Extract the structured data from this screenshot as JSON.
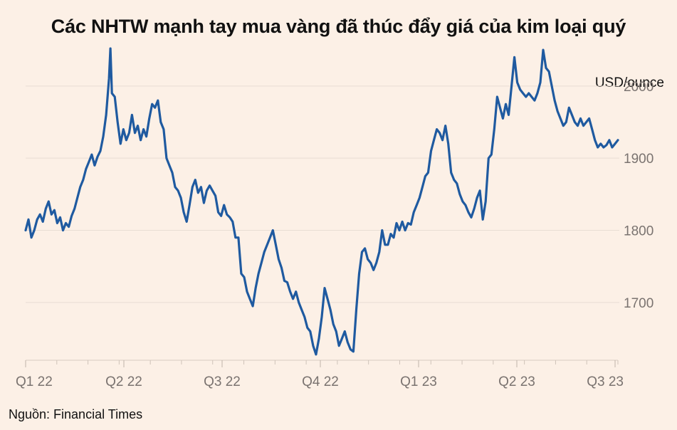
{
  "title": "Các NHTW mạnh tay mua vàng đã thúc đẩy giá của kim loại quý",
  "unit_label": "USD/ounce",
  "source": "Nguồn: Financial Times",
  "colors": {
    "background": "#fcf0e6",
    "line": "#1f5aa0",
    "grid": "#e8ddd4",
    "tick_text": "#7a7370"
  },
  "chart_data": {
    "type": "line",
    "title": "Các NHTW mạnh tay mua vàng đã thúc đẩy giá của kim loại quý",
    "xlabel": "",
    "ylabel": "USD/ounce",
    "ylim": [
      1620,
      2060
    ],
    "yticks": [
      1700,
      1800,
      1900,
      2000
    ],
    "xticks": [
      "Q1 22",
      "Q2 22",
      "Q3 22",
      "Q4 22",
      "Q1 23",
      "Q2 23",
      "Q3 23"
    ],
    "grid": true,
    "series": [
      {
        "values": [
          [
            0,
            1800
          ],
          [
            2,
            1815
          ],
          [
            4,
            1790
          ],
          [
            6,
            1800
          ],
          [
            8,
            1815
          ],
          [
            10,
            1822
          ],
          [
            12,
            1812
          ],
          [
            14,
            1830
          ],
          [
            16,
            1840
          ],
          [
            18,
            1822
          ],
          [
            20,
            1828
          ],
          [
            22,
            1810
          ],
          [
            24,
            1818
          ],
          [
            26,
            1800
          ],
          [
            28,
            1810
          ],
          [
            30,
            1805
          ],
          [
            32,
            1820
          ],
          [
            34,
            1830
          ],
          [
            36,
            1845
          ],
          [
            38,
            1860
          ],
          [
            40,
            1870
          ],
          [
            42,
            1885
          ],
          [
            44,
            1895
          ],
          [
            46,
            1905
          ],
          [
            48,
            1890
          ],
          [
            50,
            1902
          ],
          [
            52,
            1910
          ],
          [
            54,
            1930
          ],
          [
            56,
            1960
          ],
          [
            58,
            2010
          ],
          [
            59,
            2052
          ],
          [
            60,
            1990
          ],
          [
            62,
            1985
          ],
          [
            64,
            1950
          ],
          [
            66,
            1920
          ],
          [
            68,
            1940
          ],
          [
            70,
            1925
          ],
          [
            72,
            1935
          ],
          [
            74,
            1960
          ],
          [
            76,
            1935
          ],
          [
            78,
            1945
          ],
          [
            80,
            1925
          ],
          [
            82,
            1940
          ],
          [
            84,
            1930
          ],
          [
            86,
            1955
          ],
          [
            88,
            1975
          ],
          [
            90,
            1970
          ],
          [
            92,
            1980
          ],
          [
            94,
            1950
          ],
          [
            96,
            1940
          ],
          [
            98,
            1900
          ],
          [
            100,
            1890
          ],
          [
            102,
            1880
          ],
          [
            104,
            1860
          ],
          [
            106,
            1855
          ],
          [
            108,
            1845
          ],
          [
            110,
            1825
          ],
          [
            112,
            1812
          ],
          [
            114,
            1835
          ],
          [
            116,
            1860
          ],
          [
            118,
            1870
          ],
          [
            120,
            1852
          ],
          [
            122,
            1860
          ],
          [
            124,
            1838
          ],
          [
            126,
            1855
          ],
          [
            128,
            1862
          ],
          [
            130,
            1855
          ],
          [
            132,
            1848
          ],
          [
            134,
            1825
          ],
          [
            136,
            1820
          ],
          [
            138,
            1835
          ],
          [
            140,
            1822
          ],
          [
            142,
            1818
          ],
          [
            144,
            1812
          ],
          [
            146,
            1790
          ],
          [
            148,
            1790
          ],
          [
            150,
            1740
          ],
          [
            152,
            1735
          ],
          [
            154,
            1715
          ],
          [
            156,
            1705
          ],
          [
            158,
            1695
          ],
          [
            160,
            1720
          ],
          [
            162,
            1740
          ],
          [
            164,
            1755
          ],
          [
            166,
            1770
          ],
          [
            168,
            1780
          ],
          [
            170,
            1790
          ],
          [
            172,
            1800
          ],
          [
            174,
            1780
          ],
          [
            176,
            1760
          ],
          [
            178,
            1748
          ],
          [
            180,
            1730
          ],
          [
            182,
            1728
          ],
          [
            184,
            1715
          ],
          [
            186,
            1705
          ],
          [
            188,
            1715
          ],
          [
            190,
            1700
          ],
          [
            192,
            1690
          ],
          [
            194,
            1680
          ],
          [
            196,
            1665
          ],
          [
            198,
            1660
          ],
          [
            200,
            1640
          ],
          [
            202,
            1628
          ],
          [
            204,
            1650
          ],
          [
            206,
            1680
          ],
          [
            208,
            1720
          ],
          [
            210,
            1705
          ],
          [
            212,
            1690
          ],
          [
            214,
            1670
          ],
          [
            216,
            1660
          ],
          [
            218,
            1640
          ],
          [
            220,
            1650
          ],
          [
            222,
            1660
          ],
          [
            224,
            1645
          ],
          [
            226,
            1635
          ],
          [
            228,
            1632
          ],
          [
            230,
            1690
          ],
          [
            232,
            1740
          ],
          [
            234,
            1770
          ],
          [
            236,
            1775
          ],
          [
            238,
            1760
          ],
          [
            240,
            1755
          ],
          [
            242,
            1745
          ],
          [
            244,
            1755
          ],
          [
            246,
            1770
          ],
          [
            248,
            1800
          ],
          [
            250,
            1780
          ],
          [
            252,
            1780
          ],
          [
            254,
            1795
          ],
          [
            256,
            1790
          ],
          [
            258,
            1810
          ],
          [
            260,
            1800
          ],
          [
            262,
            1812
          ],
          [
            264,
            1800
          ],
          [
            266,
            1810
          ],
          [
            268,
            1808
          ],
          [
            270,
            1825
          ],
          [
            272,
            1835
          ],
          [
            274,
            1845
          ],
          [
            276,
            1860
          ],
          [
            278,
            1875
          ],
          [
            280,
            1880
          ],
          [
            282,
            1910
          ],
          [
            284,
            1925
          ],
          [
            286,
            1940
          ],
          [
            288,
            1935
          ],
          [
            290,
            1925
          ],
          [
            292,
            1945
          ],
          [
            294,
            1920
          ],
          [
            296,
            1880
          ],
          [
            298,
            1870
          ],
          [
            300,
            1865
          ],
          [
            302,
            1850
          ],
          [
            304,
            1840
          ],
          [
            306,
            1835
          ],
          [
            308,
            1825
          ],
          [
            310,
            1818
          ],
          [
            312,
            1830
          ],
          [
            314,
            1845
          ],
          [
            316,
            1855
          ],
          [
            318,
            1815
          ],
          [
            320,
            1840
          ],
          [
            322,
            1900
          ],
          [
            324,
            1905
          ],
          [
            326,
            1940
          ],
          [
            328,
            1985
          ],
          [
            330,
            1970
          ],
          [
            332,
            1955
          ],
          [
            334,
            1975
          ],
          [
            336,
            1960
          ],
          [
            338,
            2000
          ],
          [
            340,
            2040
          ],
          [
            342,
            2005
          ],
          [
            344,
            1995
          ],
          [
            346,
            1990
          ],
          [
            348,
            1985
          ],
          [
            350,
            1990
          ],
          [
            352,
            1985
          ],
          [
            354,
            1980
          ],
          [
            356,
            1990
          ],
          [
            358,
            2005
          ],
          [
            360,
            2050
          ],
          [
            362,
            2025
          ],
          [
            364,
            2020
          ],
          [
            366,
            2000
          ],
          [
            368,
            1980
          ],
          [
            370,
            1965
          ],
          [
            372,
            1955
          ],
          [
            374,
            1945
          ],
          [
            376,
            1950
          ],
          [
            378,
            1970
          ],
          [
            380,
            1960
          ],
          [
            382,
            1950
          ],
          [
            384,
            1945
          ],
          [
            386,
            1955
          ],
          [
            388,
            1945
          ],
          [
            390,
            1950
          ],
          [
            392,
            1955
          ],
          [
            394,
            1940
          ],
          [
            396,
            1925
          ],
          [
            398,
            1915
          ],
          [
            400,
            1920
          ],
          [
            402,
            1915
          ],
          [
            404,
            1918
          ],
          [
            406,
            1925
          ],
          [
            408,
            1915
          ],
          [
            410,
            1920
          ],
          [
            412,
            1925
          ]
        ]
      }
    ]
  }
}
